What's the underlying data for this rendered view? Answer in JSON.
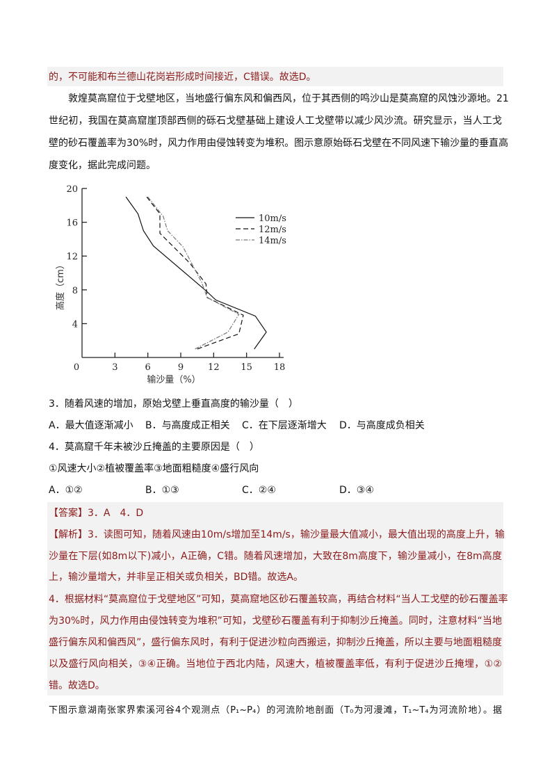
{
  "prev_answer_tail": "的，不可能和布兰德山花岗岩形成时间接近，C错误。故选D。",
  "intro": [
    "敦煌莫高窟位于戈壁地区，当地盛行偏东风和偏西风，位于其西侧的鸣沙山是莫高窟的风蚀沙源地。21",
    "世纪初，我国在莫高窟崖顶部西侧的砾石戈壁基础上建设人工戈壁带以减少风沙流。研究显示，当人工戈",
    "壁的砂石覆盖率为30%时，风力作用由侵蚀转变为堆积。图示意原始砾石戈壁在不同风速下输沙量的垂直高",
    "度变化，据此完成问题。"
  ],
  "chart_data": {
    "type": "line",
    "xlabel": "输沙量（%）",
    "ylabel": "高度（cm）",
    "xlim": [
      0,
      18
    ],
    "ylim": [
      0,
      20
    ],
    "xticks": [
      "0",
      "3",
      "6",
      "9",
      "12",
      "15",
      "18"
    ],
    "yticks": [
      "4",
      "8",
      "12",
      "16",
      "20"
    ],
    "legend_position": "top-right",
    "series": [
      {
        "name": "10m/s",
        "style": "solid",
        "points": [
          [
            4.0,
            19.0
          ],
          [
            5.1,
            17.0
          ],
          [
            5.6,
            15.0
          ],
          [
            6.5,
            13.2
          ],
          [
            11.3,
            7.9
          ],
          [
            12.2,
            6.8
          ],
          [
            15.8,
            4.9
          ],
          [
            16.8,
            3.0
          ],
          [
            15.7,
            1.0
          ]
        ]
      },
      {
        "name": "12m/s",
        "style": "dashed",
        "points": [
          [
            5.9,
            19.0
          ],
          [
            7.1,
            17.0
          ],
          [
            7.1,
            14.7
          ],
          [
            9.8,
            11.2
          ],
          [
            11.3,
            8.7
          ],
          [
            11.4,
            7.1
          ],
          [
            14.7,
            5.0
          ],
          [
            14.3,
            2.8
          ],
          [
            10.5,
            1.0
          ]
        ]
      },
      {
        "name": "14m/s",
        "style": "dashdot",
        "points": [
          [
            6.0,
            19.0
          ],
          [
            7.4,
            16.7
          ],
          [
            7.8,
            15.0
          ],
          [
            9.2,
            13.1
          ],
          [
            10.9,
            8.9
          ],
          [
            11.4,
            7.1
          ],
          [
            14.3,
            5.1
          ],
          [
            13.3,
            3.0
          ],
          [
            10.3,
            1.0
          ]
        ]
      }
    ]
  },
  "q3": {
    "stem": "3．随着风速的增加，原始戈壁上垂直高度的输沙量（　）",
    "options": [
      "A．最大值逐渐减小",
      "B．与高度成正相关",
      "C．在下层逐渐增大",
      "D．与高度成负相关"
    ]
  },
  "q4": {
    "stem": "4．莫高窟千年未被沙丘掩盖的主要原因是（　）",
    "factors": "①风速大小②植被覆盖率③地面粗糙度④盛行风向",
    "options": [
      "A．①②",
      "B．①③",
      "C．②④",
      "D．③④"
    ]
  },
  "answer": {
    "tag": "【答案】",
    "text": "3．A　4．D"
  },
  "analysis": {
    "tag": "【解析】",
    "lines": [
      "3．读图可知，随着风速由10m/s增加至14m/s，输沙量最大值减小，最大值出现的高度上升，输",
      "沙量在下层(如8m以下)减小，A正确，C错。随着风速增加，大致在8m高度下，输沙量减小，在8m高度",
      "上，输沙量增大，并非呈正相关或负相关，BD错。故选A。",
      "4．根据材料“莫高窟位于戈壁地区”可知，莫高窟地区砂石覆盖较高，再结合材料“当人工戈壁的砂石覆盖率",
      "为30%时，风力作用由侵蚀转变为堆积”可知，戈壁砂石覆盖有利于抑制沙丘掩盖。同时，注意材料“当地",
      "盛行偏东风和偏西风”，盛行偏东风时，有利于促进沙粒向西搬运，抑制沙丘掩盖，所以主要与地面粗糙度",
      "以及盛行风向相关，③④正确。当地位于西北内陆，风速大，植被覆盖率低，有利于促进沙丘掩埋，①②",
      "错。故选D。"
    ]
  },
  "next_intro": "下图示意湖南张家界索溪河谷4个观测点（P₁~P₄）的河流阶地剖面（T₀为河漫滩，T₁~T₄为河流阶地）。据",
  "colors": {
    "answer_text": "#8b1a1a",
    "answer_bg": "#f2f2f2"
  }
}
